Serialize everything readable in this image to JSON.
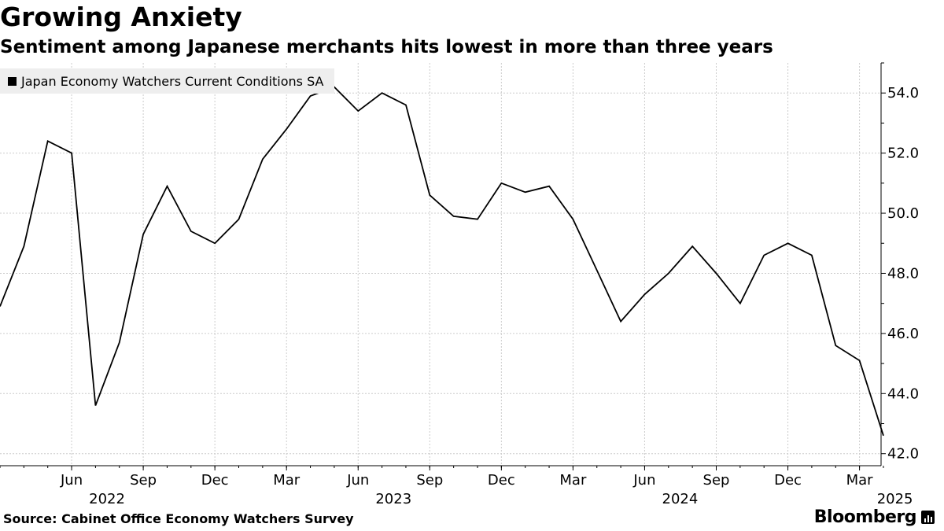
{
  "header": {
    "title": "Growing Anxiety",
    "subtitle": "Sentiment among Japanese merchants hits lowest in more than three years"
  },
  "footer": {
    "source": "Source: Cabinet Office Economy Watchers Survey",
    "brand": "Bloomberg"
  },
  "chart_data": {
    "type": "line",
    "title": "Growing Anxiety",
    "subtitle": "Sentiment among Japanese merchants hits lowest in more than three years",
    "xlabel": "",
    "ylabel": "",
    "legend": {
      "position": "top-left",
      "entries": [
        "Japan Economy Watchers Current Conditions SA"
      ]
    },
    "grid": true,
    "colors": {
      "line": "#000000",
      "grid": "#cccccc",
      "legend_bg": "#eeeeee"
    },
    "ylim": [
      41.6,
      55.0
    ],
    "y_ticks": [
      42,
      44,
      46,
      48,
      50,
      52,
      54
    ],
    "y_tick_labels": [
      "42.0",
      "44.0",
      "46.0",
      "48.0",
      "50.0",
      "52.0",
      "54.0"
    ],
    "x_ticks": [
      {
        "x": "2022-06",
        "label": "Jun",
        "year": "2022"
      },
      {
        "x": "2022-09",
        "label": "Sep",
        "year": ""
      },
      {
        "x": "2022-12",
        "label": "Dec",
        "year": ""
      },
      {
        "x": "2023-03",
        "label": "Mar",
        "year": ""
      },
      {
        "x": "2023-06",
        "label": "Jun",
        "year": "2023"
      },
      {
        "x": "2023-09",
        "label": "Sep",
        "year": ""
      },
      {
        "x": "2023-12",
        "label": "Dec",
        "year": ""
      },
      {
        "x": "2024-03",
        "label": "Mar",
        "year": ""
      },
      {
        "x": "2024-06",
        "label": "Jun",
        "year": "2024"
      },
      {
        "x": "2024-09",
        "label": "Sep",
        "year": ""
      },
      {
        "x": "2024-12",
        "label": "Dec",
        "year": ""
      },
      {
        "x": "2025-03",
        "label": "Mar",
        "year": "2025"
      }
    ],
    "series": [
      {
        "name": "Japan Economy Watchers Current Conditions SA",
        "x": [
          "2022-03",
          "2022-04",
          "2022-05",
          "2022-06",
          "2022-07",
          "2022-08",
          "2022-09",
          "2022-10",
          "2022-11",
          "2022-12",
          "2023-01",
          "2023-02",
          "2023-03",
          "2023-04",
          "2023-05",
          "2023-06",
          "2023-07",
          "2023-08",
          "2023-09",
          "2023-10",
          "2023-11",
          "2023-12",
          "2024-01",
          "2024-02",
          "2024-03",
          "2024-04",
          "2024-05",
          "2024-06",
          "2024-07",
          "2024-08",
          "2024-09",
          "2024-10",
          "2024-11",
          "2024-12",
          "2025-01",
          "2025-02",
          "2025-03",
          "2025-04"
        ],
        "values": [
          46.9,
          48.9,
          52.4,
          52.0,
          43.6,
          45.7,
          49.3,
          50.9,
          49.4,
          49.0,
          49.8,
          51.8,
          52.8,
          53.9,
          54.2,
          53.4,
          54.0,
          53.6,
          50.6,
          49.9,
          49.8,
          51.0,
          50.7,
          50.9,
          49.8,
          48.1,
          46.4,
          47.3,
          48.0,
          48.9,
          48.0,
          47.0,
          48.6,
          49.0,
          48.6,
          45.6,
          45.1,
          42.6
        ]
      }
    ]
  }
}
